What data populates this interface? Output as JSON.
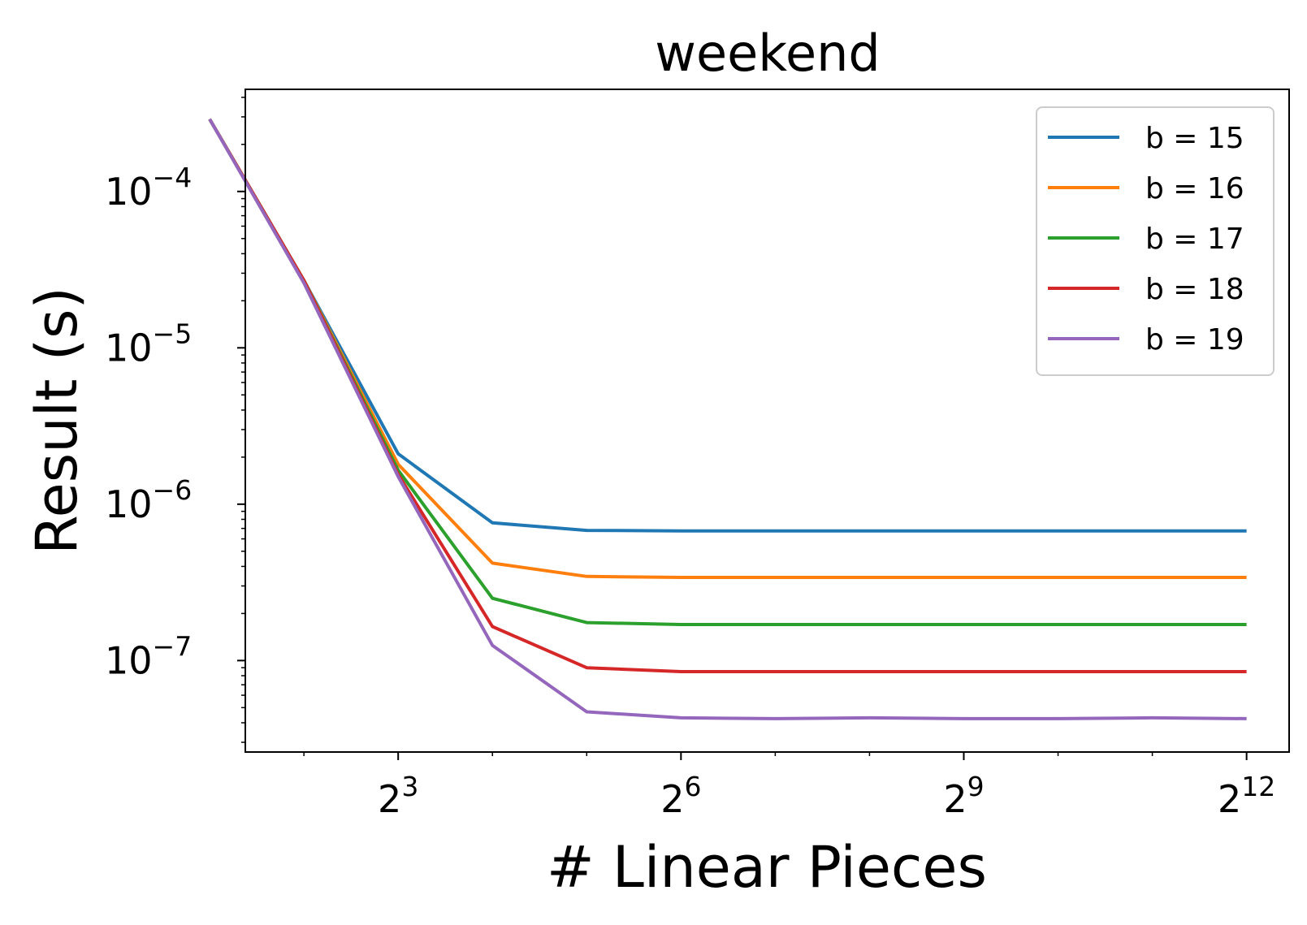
{
  "chart_data": {
    "type": "line",
    "title": "weekend",
    "xlabel": "# Linear Pieces",
    "ylabel": "Result (s)",
    "x_scale": "log2",
    "y_scale": "log10",
    "xlim": [
      2.6,
      5600
    ],
    "ylim": [
      2.6e-08,
      0.00045
    ],
    "x": [
      2,
      4,
      8,
      16,
      32,
      64,
      128,
      256,
      512,
      1024,
      2048,
      4096
    ],
    "x_ticks": [
      {
        "value": 8,
        "base": "2",
        "exp": "3"
      },
      {
        "value": 64,
        "base": "2",
        "exp": "6"
      },
      {
        "value": 512,
        "base": "2",
        "exp": "9"
      },
      {
        "value": 4096,
        "base": "2",
        "exp": "12"
      }
    ],
    "y_ticks": [
      {
        "value": 0.0001,
        "base": "10",
        "exp": "−4"
      },
      {
        "value": 1e-05,
        "base": "10",
        "exp": "−5"
      },
      {
        "value": 1e-06,
        "base": "10",
        "exp": "−6"
      },
      {
        "value": 1e-07,
        "base": "10",
        "exp": "−7"
      }
    ],
    "grid": false,
    "legend_position": "top-right",
    "series": [
      {
        "name": "b = 15",
        "color": "#1f77b4",
        "values": [
          0.00029,
          2.7e-05,
          2.1e-06,
          7.6e-07,
          6.8e-07,
          6.75e-07,
          6.75e-07,
          6.75e-07,
          6.75e-07,
          6.75e-07,
          6.75e-07,
          6.75e-07
        ]
      },
      {
        "name": "b = 16",
        "color": "#ff7f0e",
        "values": [
          0.00029,
          2.7e-05,
          1.8e-06,
          4.2e-07,
          3.45e-07,
          3.4e-07,
          3.4e-07,
          3.4e-07,
          3.4e-07,
          3.4e-07,
          3.4e-07,
          3.4e-07
        ]
      },
      {
        "name": "b = 17",
        "color": "#2ca02c",
        "values": [
          0.00029,
          2.7e-05,
          1.65e-06,
          2.5e-07,
          1.75e-07,
          1.7e-07,
          1.7e-07,
          1.7e-07,
          1.7e-07,
          1.7e-07,
          1.7e-07,
          1.7e-07
        ]
      },
      {
        "name": "b = 18",
        "color": "#d62728",
        "values": [
          0.00029,
          2.7e-05,
          1.55e-06,
          1.65e-07,
          9e-08,
          8.5e-08,
          8.5e-08,
          8.5e-08,
          8.5e-08,
          8.5e-08,
          8.5e-08,
          8.5e-08
        ]
      },
      {
        "name": "b = 19",
        "color": "#9467bd",
        "values": [
          0.00029,
          2.6e-05,
          1.5e-06,
          1.25e-07,
          4.7e-08,
          4.3e-08,
          4.25e-08,
          4.3e-08,
          4.25e-08,
          4.25e-08,
          4.3e-08,
          4.25e-08
        ]
      }
    ]
  }
}
